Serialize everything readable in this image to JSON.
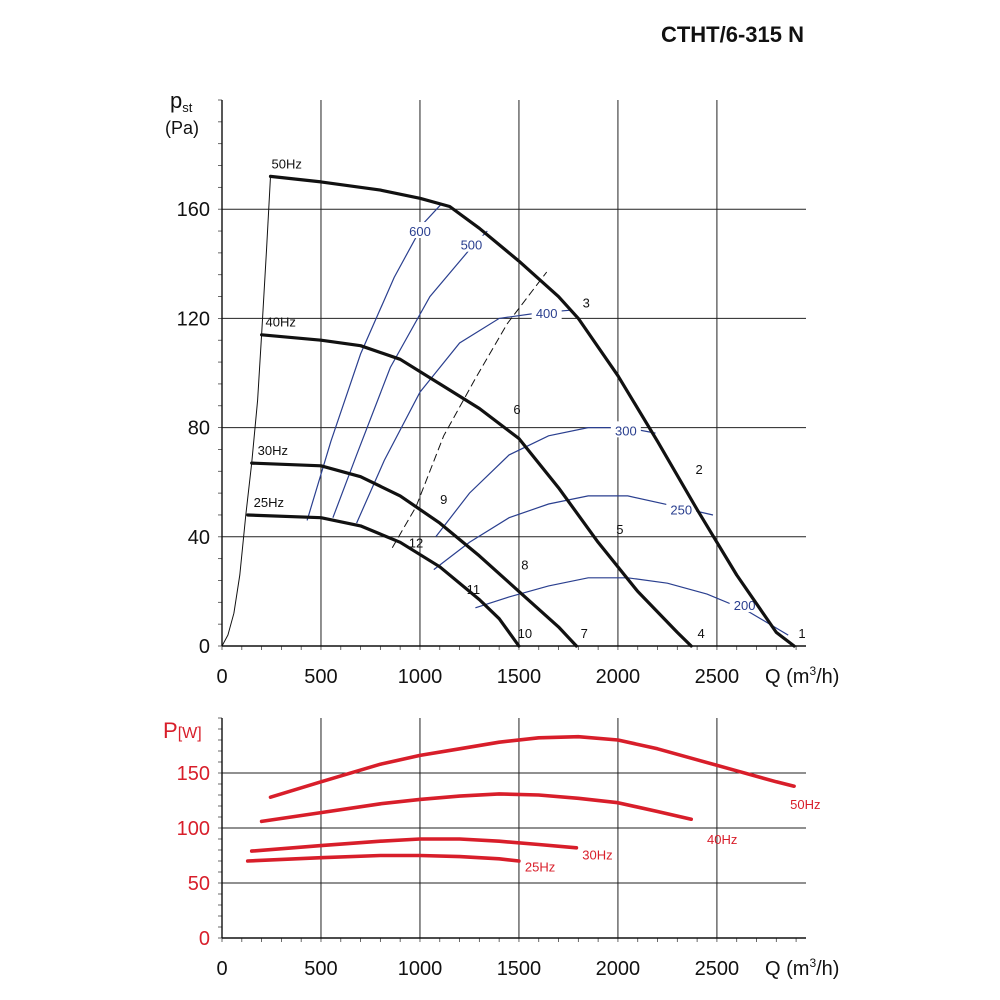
{
  "title": "CTHT/6-315 N",
  "chart_data": [
    {
      "type": "line",
      "id": "pressure",
      "ylabel_main": "p",
      "ylabel_sub": "st",
      "ylabel_unit": "(Pa)",
      "xlabel_prefix": "Q (m",
      "xlabel_sup": "3",
      "xlabel_suffix": "/h)",
      "xlim": [
        0,
        2950
      ],
      "ylim": [
        0,
        200
      ],
      "x_ticks": [
        0,
        500,
        1000,
        1500,
        2000,
        2500
      ],
      "x_tick_labels": [
        "0",
        "500",
        "1000",
        "1500",
        "2000",
        "2500"
      ],
      "y_ticks": [
        0,
        40,
        80,
        120,
        160
      ],
      "y_tick_labels": [
        "0",
        "40",
        "80",
        "120",
        "160"
      ],
      "grid": true,
      "series": [
        {
          "name": "50Hz",
          "color": "#111111",
          "points": [
            [
              245,
              172
            ],
            [
              500,
              170
            ],
            [
              800,
              167
            ],
            [
              1000,
              164
            ],
            [
              1150,
              161
            ],
            [
              1300,
              153
            ],
            [
              1500,
              141
            ],
            [
              1700,
              128
            ],
            [
              1800,
              120
            ],
            [
              2000,
              99
            ],
            [
              2200,
              75
            ],
            [
              2400,
              50
            ],
            [
              2600,
              26
            ],
            [
              2800,
              5
            ],
            [
              2890,
              0
            ]
          ]
        },
        {
          "name": "40Hz",
          "color": "#111111",
          "points": [
            [
              200,
              114
            ],
            [
              500,
              112
            ],
            [
              700,
              110
            ],
            [
              900,
              105
            ],
            [
              1100,
              96
            ],
            [
              1300,
              87
            ],
            [
              1500,
              76
            ],
            [
              1700,
              58
            ],
            [
              1900,
              38
            ],
            [
              2100,
              20
            ],
            [
              2300,
              5
            ],
            [
              2370,
              0
            ]
          ]
        },
        {
          "name": "30Hz",
          "color": "#111111",
          "points": [
            [
              150,
              67
            ],
            [
              500,
              66
            ],
            [
              700,
              62
            ],
            [
              900,
              55
            ],
            [
              1100,
              45
            ],
            [
              1300,
              33
            ],
            [
              1500,
              20
            ],
            [
              1700,
              7
            ],
            [
              1790,
              0
            ]
          ]
        },
        {
          "name": "25Hz",
          "color": "#111111",
          "points": [
            [
              130,
              48
            ],
            [
              500,
              47
            ],
            [
              700,
              44
            ],
            [
              900,
              38
            ],
            [
              1100,
              29
            ],
            [
              1300,
              17
            ],
            [
              1400,
              10
            ],
            [
              1500,
              0
            ]
          ]
        }
      ],
      "start_curve": [
        [
          0,
          0
        ],
        [
          30,
          4
        ],
        [
          60,
          12
        ],
        [
          90,
          26
        ],
        [
          120,
          48
        ],
        [
          150,
          67
        ],
        [
          180,
          90
        ],
        [
          200,
          114
        ],
        [
          225,
          145
        ],
        [
          245,
          172
        ]
      ],
      "efficiency_line": [
        [
          860,
          36
        ],
        [
          980,
          51
        ],
        [
          1120,
          77
        ],
        [
          1280,
          98
        ],
        [
          1440,
          118
        ],
        [
          1640,
          137
        ]
      ],
      "power_iso_lines": [
        {
          "label": "600",
          "color": "#2a3f8f",
          "label_at": [
            1000,
            152
          ],
          "points": [
            [
              430,
              46
            ],
            [
              550,
              75
            ],
            [
              700,
              107
            ],
            [
              870,
              135
            ],
            [
              1020,
              155
            ],
            [
              1110,
              162
            ]
          ]
        },
        {
          "label": "500",
          "color": "#2a3f8f",
          "label_at": [
            1260,
            147
          ],
          "points": [
            [
              560,
              47
            ],
            [
              680,
              70
            ],
            [
              850,
              102
            ],
            [
              1050,
              128
            ],
            [
              1260,
              146
            ],
            [
              1340,
              152
            ]
          ]
        },
        {
          "label": "400",
          "color": "#2a3f8f",
          "label_at": [
            1640,
            122
          ],
          "points": [
            [
              680,
              45
            ],
            [
              820,
              68
            ],
            [
              1000,
              93
            ],
            [
              1200,
              111
            ],
            [
              1400,
              120
            ],
            [
              1600,
              122
            ],
            [
              1760,
              123
            ]
          ]
        },
        {
          "label": "300",
          "color": "#2a3f8f",
          "label_at": [
            2040,
            79
          ],
          "points": [
            [
              1080,
              40
            ],
            [
              1250,
              56
            ],
            [
              1450,
              70
            ],
            [
              1650,
              77
            ],
            [
              1850,
              80
            ],
            [
              2040,
              80
            ],
            [
              2190,
              78
            ]
          ]
        },
        {
          "label": "250",
          "color": "#2a3f8f",
          "label_at": [
            2320,
            50
          ],
          "points": [
            [
              1070,
              28
            ],
            [
              1250,
              38
            ],
            [
              1450,
              47
            ],
            [
              1650,
              52
            ],
            [
              1850,
              55
            ],
            [
              2050,
              55
            ],
            [
              2300,
              51
            ],
            [
              2480,
              48
            ]
          ]
        },
        {
          "label": "200",
          "color": "#2a3f8f",
          "label_at": [
            2640,
            15
          ],
          "points": [
            [
              1280,
              14
            ],
            [
              1450,
              18
            ],
            [
              1650,
              22
            ],
            [
              1850,
              25
            ],
            [
              2050,
              25
            ],
            [
              2250,
              23
            ],
            [
              2450,
              19
            ],
            [
              2650,
              13
            ],
            [
              2860,
              4
            ]
          ]
        }
      ],
      "point_labels": [
        {
          "text": "1",
          "at": [
            2930,
            3
          ]
        },
        {
          "text": "2",
          "at": [
            2410,
            63
          ]
        },
        {
          "text": "3",
          "at": [
            1840,
            124
          ]
        },
        {
          "text": "4",
          "at": [
            2420,
            3
          ]
        },
        {
          "text": "5",
          "at": [
            2010,
            41
          ]
        },
        {
          "text": "6",
          "at": [
            1490,
            85
          ]
        },
        {
          "text": "7",
          "at": [
            1830,
            3
          ]
        },
        {
          "text": "8",
          "at": [
            1530,
            28
          ]
        },
        {
          "text": "9",
          "at": [
            1120,
            52
          ]
        },
        {
          "text": "10",
          "at": [
            1530,
            3
          ]
        },
        {
          "text": "11",
          "at": [
            1270,
            19
          ]
        },
        {
          "text": "12",
          "at": [
            980,
            36
          ]
        }
      ],
      "curve_labels": [
        {
          "text": "50Hz",
          "at": [
            250,
            175
          ]
        },
        {
          "text": "40Hz",
          "at": [
            220,
            117
          ]
        },
        {
          "text": "30Hz",
          "at": [
            180,
            70
          ]
        },
        {
          "text": "25Hz",
          "at": [
            160,
            51
          ]
        }
      ]
    },
    {
      "type": "line",
      "id": "power",
      "ylabel_main": "P",
      "ylabel_unit": "[W]",
      "ylabel_color": "#d81e2a",
      "xlabel_prefix": "Q (m",
      "xlabel_sup": "3",
      "xlabel_suffix": "/h)",
      "xlim": [
        0,
        2950
      ],
      "ylim": [
        0,
        200
      ],
      "x_ticks": [
        0,
        500,
        1000,
        1500,
        2000,
        2500
      ],
      "x_tick_labels": [
        "0",
        "500",
        "1000",
        "1500",
        "2000",
        "2500"
      ],
      "y_ticks": [
        0,
        50,
        100,
        150
      ],
      "y_tick_labels": [
        "0",
        "50",
        "100",
        "150"
      ],
      "grid": true,
      "series": [
        {
          "name": "50Hz",
          "color": "#d81e2a",
          "label_at": [
            2870,
            122
          ],
          "points": [
            [
              245,
              128
            ],
            [
              500,
              142
            ],
            [
              800,
              158
            ],
            [
              1000,
              166
            ],
            [
              1200,
              172
            ],
            [
              1400,
              178
            ],
            [
              1600,
              182
            ],
            [
              1800,
              183
            ],
            [
              2000,
              180
            ],
            [
              2200,
              172
            ],
            [
              2400,
              162
            ],
            [
              2600,
              152
            ],
            [
              2800,
              142
            ],
            [
              2890,
              138
            ]
          ]
        },
        {
          "name": "40Hz",
          "color": "#d81e2a",
          "label_at": [
            2450,
            90
          ],
          "points": [
            [
              200,
              106
            ],
            [
              500,
              114
            ],
            [
              800,
              122
            ],
            [
              1000,
              126
            ],
            [
              1200,
              129
            ],
            [
              1400,
              131
            ],
            [
              1600,
              130
            ],
            [
              1800,
              127
            ],
            [
              2000,
              123
            ],
            [
              2200,
              115
            ],
            [
              2370,
              108
            ]
          ]
        },
        {
          "name": "30Hz",
          "color": "#d81e2a",
          "label_at": [
            1820,
            76
          ],
          "points": [
            [
              150,
              79
            ],
            [
              500,
              84
            ],
            [
              800,
              88
            ],
            [
              1000,
              90
            ],
            [
              1200,
              90
            ],
            [
              1400,
              88
            ],
            [
              1600,
              85
            ],
            [
              1790,
              82
            ]
          ]
        },
        {
          "name": "25Hz",
          "color": "#d81e2a",
          "label_at": [
            1530,
            65
          ],
          "points": [
            [
              130,
              70
            ],
            [
              500,
              73
            ],
            [
              800,
              75
            ],
            [
              1000,
              75
            ],
            [
              1200,
              74
            ],
            [
              1400,
              72
            ],
            [
              1500,
              70
            ]
          ]
        }
      ]
    }
  ]
}
